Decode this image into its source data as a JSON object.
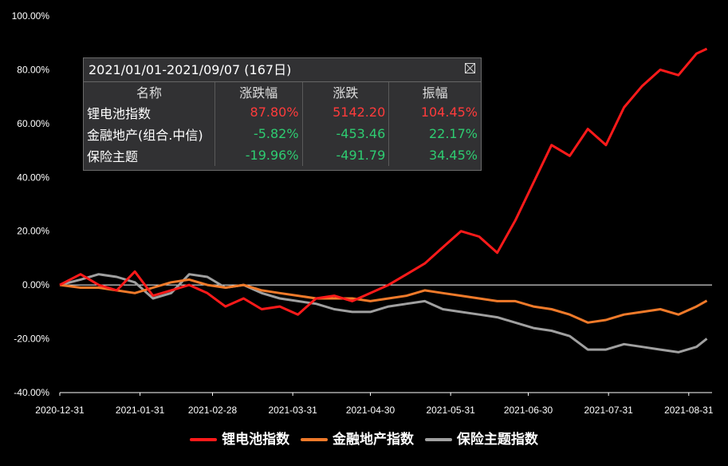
{
  "chart_data": {
    "type": "line",
    "title": "",
    "xlabel": "",
    "ylabel": "",
    "ylim": [
      -40,
      100
    ],
    "yticks": [
      -40,
      -20,
      0,
      20,
      40,
      60,
      80,
      100
    ],
    "ytick_labels": [
      "-40.00%",
      "-20.00%",
      "0.00%",
      "20.00%",
      "40.00%",
      "60.00%",
      "80.00%",
      "100.00%"
    ],
    "x_dates": [
      "2020-12-31",
      "2021-01-08",
      "2021-01-15",
      "2021-01-22",
      "2021-01-29",
      "2021-02-05",
      "2021-02-12",
      "2021-02-19",
      "2021-02-26",
      "2021-03-05",
      "2021-03-12",
      "2021-03-19",
      "2021-03-26",
      "2021-04-02",
      "2021-04-09",
      "2021-04-16",
      "2021-04-23",
      "2021-04-30",
      "2021-05-07",
      "2021-05-14",
      "2021-05-21",
      "2021-05-28",
      "2021-06-04",
      "2021-06-11",
      "2021-06-18",
      "2021-06-25",
      "2021-07-02",
      "2021-07-09",
      "2021-07-16",
      "2021-07-23",
      "2021-07-30",
      "2021-08-06",
      "2021-08-13",
      "2021-08-20",
      "2021-08-27",
      "2021-09-03",
      "2021-09-07"
    ],
    "x_ticks": [
      "2020-12-31",
      "2021-01-31",
      "2021-02-28",
      "2021-03-31",
      "2021-04-30",
      "2021-05-31",
      "2021-06-30",
      "2021-07-31",
      "2021-08-31"
    ],
    "series": [
      {
        "name": "锂电池指数",
        "color": "#ff1a1a",
        "values": [
          0,
          4,
          0,
          -2,
          5,
          -4,
          -2,
          0,
          -3,
          -8,
          -5,
          -9,
          -8,
          -11,
          -5,
          -4,
          -6,
          -3,
          0,
          4,
          8,
          14,
          20,
          18,
          12,
          24,
          38,
          52,
          48,
          58,
          52,
          66,
          74,
          80,
          78,
          86,
          87.8
        ]
      },
      {
        "name": "金融地产指数",
        "color": "#f07a2a",
        "values": [
          0,
          -1,
          -1,
          -2,
          -3,
          -1,
          1,
          2,
          0,
          -1,
          0,
          -2,
          -3,
          -4,
          -5,
          -5,
          -5,
          -6,
          -5,
          -4,
          -2,
          -3,
          -4,
          -5,
          -6,
          -6,
          -8,
          -9,
          -11,
          -14,
          -13,
          -11,
          -10,
          -9,
          -11,
          -8,
          -5.82
        ]
      },
      {
        "name": "保险主题指数",
        "color": "#a0a0a0",
        "values": [
          0,
          2,
          4,
          3,
          1,
          -5,
          -3,
          4,
          3,
          -1,
          0,
          -3,
          -5,
          -6,
          -7,
          -9,
          -10,
          -10,
          -8,
          -7,
          -6,
          -9,
          -10,
          -11,
          -12,
          -14,
          -16,
          -17,
          -19,
          -24,
          -24,
          -22,
          -23,
          -24,
          -25,
          -23,
          -19.96
        ]
      }
    ],
    "legend_position": "bottom",
    "grid": false
  },
  "info_box": {
    "title": "2021/01/01-2021/09/07 (167日)",
    "headers": [
      "名称",
      "涨跌幅",
      "涨跌",
      "振幅"
    ],
    "rows": [
      {
        "name": "锂电池指数",
        "pct": "87.80%",
        "chg": "5142.20",
        "amp": "104.45%",
        "sign": "pos"
      },
      {
        "name": "金融地产(组合.中信)",
        "pct": "-5.82%",
        "chg": "-453.46",
        "amp": "22.17%",
        "sign": "neg"
      },
      {
        "name": "保险主题",
        "pct": "-19.96%",
        "chg": "-491.79",
        "amp": "34.45%",
        "sign": "neg"
      }
    ]
  }
}
